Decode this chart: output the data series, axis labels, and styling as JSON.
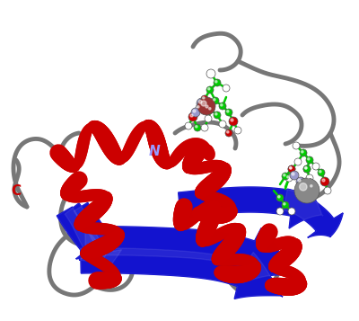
{
  "background_color": "#ffffff",
  "helix_color": "#cc0000",
  "sheet_color": "#0000cc",
  "loop_color": "#777777",
  "site_bond_color": "#00cc00",
  "site_atom_white": "#ffffff",
  "site_atom_red": "#cc0000",
  "site_atom_blue": "#9999cc",
  "site_atom_green": "#00cc00",
  "metal_color": "#888888",
  "label_C_color": "#cc0000",
  "label_N_color": "#9999ff",
  "figsize": [
    4.0,
    3.57
  ],
  "dpi": 100
}
